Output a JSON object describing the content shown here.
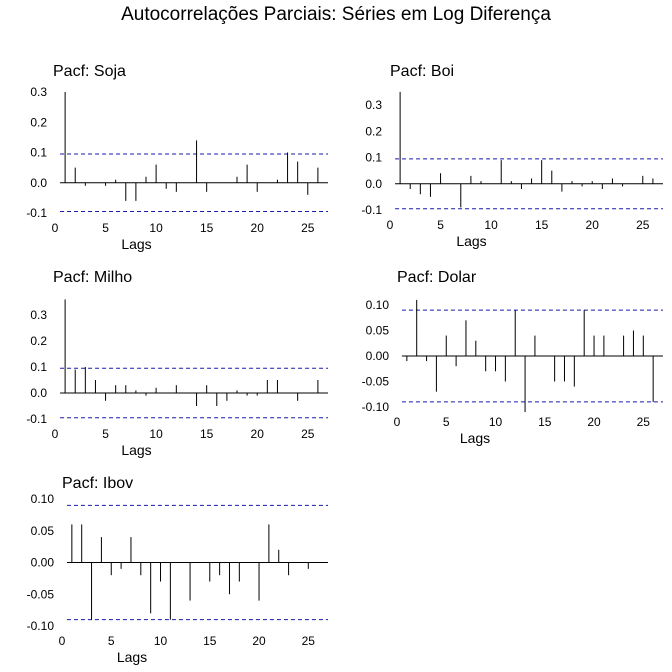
{
  "figure": {
    "title": "Autocorrelações Parciais: Séries em Log Diferença"
  },
  "chart_data": [
    {
      "type": "bar",
      "title": "Pacf: Soja",
      "xlabel": "Lags",
      "ylabel": "",
      "xlim": [
        0,
        27
      ],
      "ylim": [
        -0.1,
        0.3
      ],
      "xticks": [
        "0",
        "5",
        "10",
        "15",
        "20",
        "25"
      ],
      "yticks": [
        "-0.1",
        "0.0",
        "0.1",
        "0.2",
        "0.3"
      ],
      "confidence_bound": 0.095,
      "x": [
        1,
        2,
        3,
        4,
        5,
        6,
        7,
        8,
        9,
        10,
        11,
        12,
        13,
        14,
        15,
        16,
        17,
        18,
        19,
        20,
        21,
        22,
        23,
        24,
        25,
        26
      ],
      "values": [
        0.3,
        0.05,
        -0.01,
        0.0,
        -0.01,
        0.01,
        -0.06,
        -0.06,
        0.02,
        0.06,
        -0.02,
        -0.03,
        0.0,
        0.14,
        -0.03,
        0.0,
        0.0,
        0.02,
        0.06,
        -0.03,
        0.0,
        0.01,
        0.1,
        0.07,
        -0.04,
        0.05
      ]
    },
    {
      "type": "bar",
      "title": "Pacf: Boi",
      "xlabel": "Lags",
      "ylabel": "",
      "xlim": [
        0,
        27
      ],
      "ylim": [
        -0.1,
        0.35
      ],
      "xticks": [
        "0",
        "5",
        "10",
        "15",
        "20",
        "25"
      ],
      "yticks": [
        "-0.1",
        "0.0",
        "0.1",
        "0.2",
        "0.3"
      ],
      "confidence_bound": 0.095,
      "x": [
        1,
        2,
        3,
        4,
        5,
        6,
        7,
        8,
        9,
        10,
        11,
        12,
        13,
        14,
        15,
        16,
        17,
        18,
        19,
        20,
        21,
        22,
        23,
        24,
        25,
        26
      ],
      "values": [
        0.35,
        -0.02,
        -0.04,
        -0.05,
        0.04,
        0.0,
        -0.09,
        0.03,
        0.01,
        0.0,
        0.09,
        0.01,
        -0.02,
        0.02,
        0.09,
        0.05,
        -0.03,
        0.01,
        -0.01,
        0.01,
        -0.02,
        0.02,
        -0.01,
        0.0,
        0.03,
        0.02
      ]
    },
    {
      "type": "bar",
      "title": "Pacf: Milho",
      "xlabel": "Lags",
      "ylabel": "",
      "xlim": [
        0,
        27
      ],
      "ylim": [
        -0.1,
        0.36
      ],
      "xticks": [
        "0",
        "5",
        "10",
        "15",
        "20",
        "25"
      ],
      "yticks": [
        "-0.1",
        "0.0",
        "0.1",
        "0.2",
        "0.3"
      ],
      "confidence_bound": 0.095,
      "x": [
        1,
        2,
        3,
        4,
        5,
        6,
        7,
        8,
        9,
        10,
        11,
        12,
        13,
        14,
        15,
        16,
        17,
        18,
        19,
        20,
        21,
        22,
        23,
        24,
        25,
        26
      ],
      "values": [
        0.36,
        0.09,
        0.1,
        0.05,
        -0.03,
        0.03,
        0.03,
        0.01,
        -0.01,
        0.02,
        0.0,
        0.03,
        0.0,
        -0.05,
        0.03,
        -0.05,
        -0.03,
        0.01,
        -0.01,
        -0.01,
        0.05,
        0.05,
        0.0,
        -0.03,
        0.0,
        0.05
      ]
    },
    {
      "type": "bar",
      "title": "Pacf: Dolar",
      "xlabel": "Lags",
      "ylabel": "",
      "xlim": [
        0,
        27
      ],
      "ylim": [
        -0.12,
        0.12
      ],
      "xticks": [
        "0",
        "5",
        "10",
        "15",
        "20",
        "25"
      ],
      "yticks": [
        "-0.10",
        "-0.05",
        "0.00",
        "0.05",
        "0.10"
      ],
      "confidence_bound": 0.09,
      "x": [
        1,
        2,
        3,
        4,
        5,
        6,
        7,
        8,
        9,
        10,
        11,
        12,
        13,
        14,
        15,
        16,
        17,
        18,
        19,
        20,
        21,
        22,
        23,
        24,
        25,
        26
      ],
      "values": [
        -0.01,
        0.11,
        -0.01,
        -0.07,
        0.04,
        -0.02,
        0.07,
        0.03,
        -0.03,
        -0.03,
        -0.05,
        0.09,
        -0.11,
        0.04,
        0.0,
        -0.05,
        -0.05,
        -0.06,
        0.09,
        0.04,
        0.04,
        0.0,
        0.04,
        0.05,
        0.04,
        -0.09
      ]
    },
    {
      "type": "bar",
      "title": "Pacf: Ibov",
      "xlabel": "Lags",
      "ylabel": "",
      "xlim": [
        0,
        27
      ],
      "ylim": [
        -0.11,
        0.11
      ],
      "xticks": [
        "0",
        "5",
        "10",
        "15",
        "20",
        "25"
      ],
      "yticks": [
        "-0.10",
        "-0.05",
        "0.00",
        "0.05",
        "0.10"
      ],
      "confidence_bound": 0.09,
      "x": [
        1,
        2,
        3,
        4,
        5,
        6,
        7,
        8,
        9,
        10,
        11,
        12,
        13,
        14,
        15,
        16,
        17,
        18,
        19,
        20,
        21,
        22,
        23,
        24,
        25,
        26
      ],
      "values": [
        0.06,
        0.06,
        -0.09,
        0.04,
        -0.02,
        -0.01,
        0.04,
        -0.02,
        -0.08,
        -0.03,
        -0.09,
        0.0,
        -0.06,
        0.0,
        -0.03,
        -0.02,
        -0.05,
        -0.03,
        0.0,
        -0.06,
        0.06,
        0.02,
        -0.02,
        0.0,
        -0.01,
        0.0
      ]
    }
  ]
}
